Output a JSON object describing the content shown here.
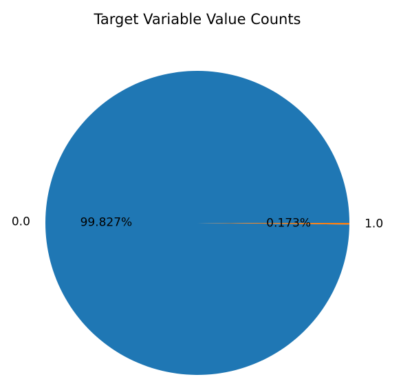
{
  "chart_data": {
    "type": "pie",
    "title": "Target Variable Value Counts",
    "labels": [
      "0.0",
      "1.0"
    ],
    "values": [
      99.827,
      0.173
    ],
    "percent_labels": [
      "99.827%",
      "0.173%"
    ],
    "colors": [
      "#1f77b4",
      "#ff7f0e"
    ],
    "start_angle_deg": 0,
    "direction": "counterclockwise",
    "legend": "none"
  }
}
